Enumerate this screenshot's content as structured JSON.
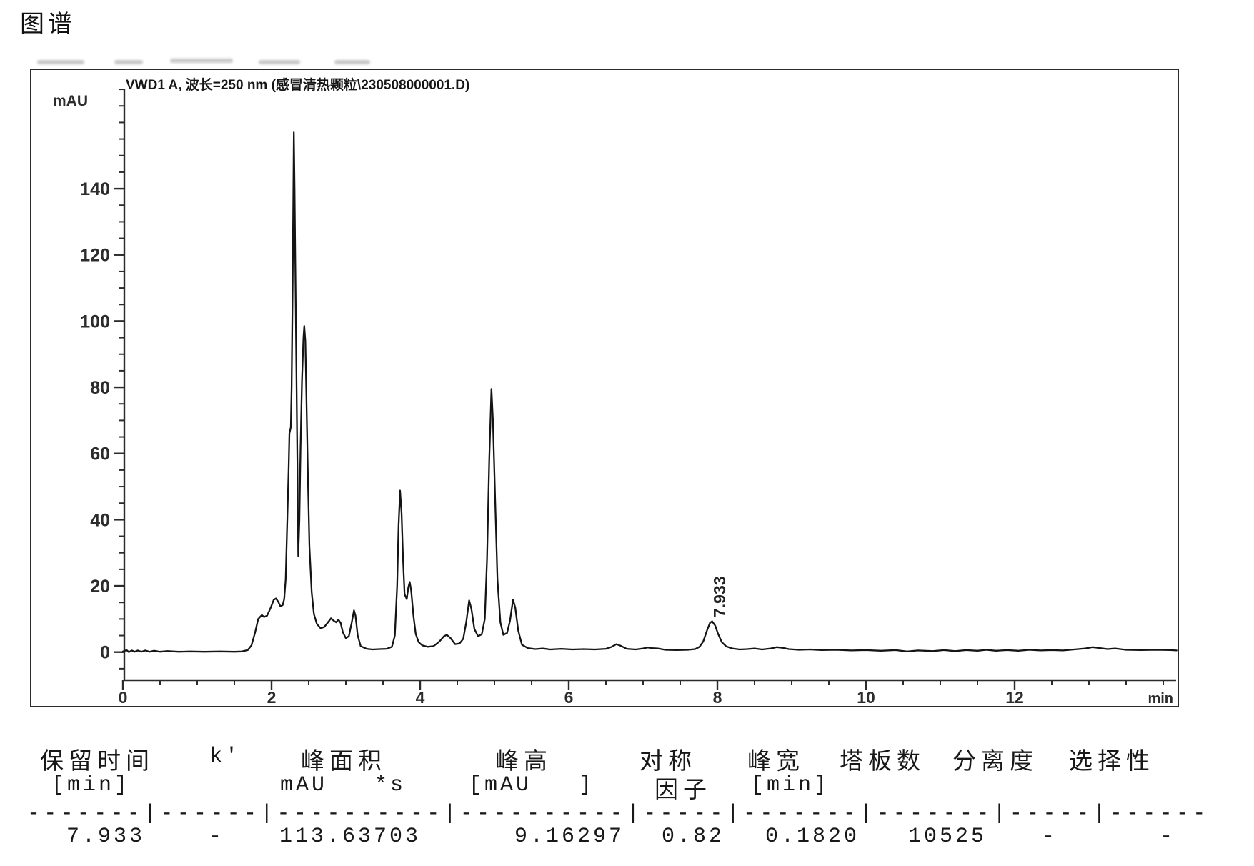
{
  "page": {
    "title": "图谱"
  },
  "chart": {
    "header": "VWD1 A, 波长=250 nm (感冒清热颗粒\\230508000001.D)",
    "y_unit": "mAU",
    "x_unit": "min"
  },
  "chart_data": {
    "type": "line",
    "title": "VWD1 A, 波长=250 nm (感冒清热颗粒\\230508000001.D)",
    "xlabel": "min",
    "ylabel": "mAU",
    "xlim": [
      0,
      14.2
    ],
    "ylim": [
      -8.5,
      170
    ],
    "x_ticks": [
      0,
      2,
      4,
      6,
      8,
      10,
      12
    ],
    "x_minor_step": 0.5,
    "y_ticks": [
      0,
      20,
      40,
      60,
      80,
      100,
      120,
      140
    ],
    "y_minor_step": 5,
    "grid": false,
    "legend": "none",
    "peaks": [
      {
        "label": "7.933",
        "rt_min": 7.933,
        "height_mau": 9.16297,
        "area": 113.63703
      }
    ],
    "series": [
      {
        "name": "VWD1 A",
        "points": [
          [
            0.0,
            0.2
          ],
          [
            0.05,
            0.6
          ],
          [
            0.08,
            0.0
          ],
          [
            0.12,
            0.5
          ],
          [
            0.16,
            0.1
          ],
          [
            0.2,
            0.5
          ],
          [
            0.25,
            0.1
          ],
          [
            0.3,
            0.5
          ],
          [
            0.36,
            0.1
          ],
          [
            0.42,
            0.4
          ],
          [
            0.5,
            0.1
          ],
          [
            0.6,
            0.3
          ],
          [
            0.75,
            0.1
          ],
          [
            0.9,
            0.2
          ],
          [
            1.1,
            0.1
          ],
          [
            1.3,
            0.2
          ],
          [
            1.5,
            0.1
          ],
          [
            1.6,
            0.2
          ],
          [
            1.68,
            0.6
          ],
          [
            1.73,
            2.0
          ],
          [
            1.78,
            6.0
          ],
          [
            1.82,
            10.0
          ],
          [
            1.87,
            11.2
          ],
          [
            1.9,
            10.6
          ],
          [
            1.94,
            11.0
          ],
          [
            1.99,
            13.5
          ],
          [
            2.03,
            15.8
          ],
          [
            2.06,
            16.2
          ],
          [
            2.09,
            15.2
          ],
          [
            2.12,
            13.8
          ],
          [
            2.15,
            14.2
          ],
          [
            2.17,
            16.0
          ],
          [
            2.19,
            22.0
          ],
          [
            2.21,
            38.0
          ],
          [
            2.23,
            55.0
          ],
          [
            2.24,
            66.0
          ],
          [
            2.26,
            68.0
          ],
          [
            2.27,
            80.0
          ],
          [
            2.285,
            112.0
          ],
          [
            2.3,
            157.0
          ],
          [
            2.31,
            140.0
          ],
          [
            2.33,
            95.0
          ],
          [
            2.35,
            52.0
          ],
          [
            2.36,
            29.0
          ],
          [
            2.375,
            40.0
          ],
          [
            2.39,
            62.0
          ],
          [
            2.41,
            82.0
          ],
          [
            2.43,
            95.0
          ],
          [
            2.44,
            98.5
          ],
          [
            2.455,
            94.0
          ],
          [
            2.47,
            76.0
          ],
          [
            2.49,
            52.0
          ],
          [
            2.51,
            32.0
          ],
          [
            2.54,
            18.0
          ],
          [
            2.57,
            11.5
          ],
          [
            2.61,
            8.5
          ],
          [
            2.66,
            7.2
          ],
          [
            2.71,
            7.6
          ],
          [
            2.76,
            9.0
          ],
          [
            2.8,
            10.2
          ],
          [
            2.84,
            9.4
          ],
          [
            2.87,
            9.0
          ],
          [
            2.9,
            9.8
          ],
          [
            2.93,
            8.8
          ],
          [
            2.96,
            6.0
          ],
          [
            3.0,
            4.2
          ],
          [
            3.04,
            4.8
          ],
          [
            3.08,
            9.0
          ],
          [
            3.11,
            12.6
          ],
          [
            3.13,
            11.0
          ],
          [
            3.16,
            5.0
          ],
          [
            3.2,
            1.8
          ],
          [
            3.28,
            1.0
          ],
          [
            3.36,
            0.8
          ],
          [
            3.45,
            0.9
          ],
          [
            3.55,
            1.0
          ],
          [
            3.62,
            1.6
          ],
          [
            3.66,
            5.0
          ],
          [
            3.69,
            20.0
          ],
          [
            3.71,
            38.0
          ],
          [
            3.73,
            48.8
          ],
          [
            3.75,
            42.0
          ],
          [
            3.77,
            28.0
          ],
          [
            3.79,
            17.5
          ],
          [
            3.82,
            16.0
          ],
          [
            3.84,
            19.5
          ],
          [
            3.86,
            21.2
          ],
          [
            3.88,
            18.5
          ],
          [
            3.91,
            11.0
          ],
          [
            3.94,
            5.5
          ],
          [
            3.98,
            3.0
          ],
          [
            4.03,
            2.0
          ],
          [
            4.1,
            1.6
          ],
          [
            4.18,
            1.8
          ],
          [
            4.26,
            3.2
          ],
          [
            4.32,
            4.8
          ],
          [
            4.36,
            5.2
          ],
          [
            4.41,
            4.2
          ],
          [
            4.47,
            2.4
          ],
          [
            4.53,
            2.6
          ],
          [
            4.58,
            4.0
          ],
          [
            4.62,
            9.0
          ],
          [
            4.66,
            15.6
          ],
          [
            4.69,
            13.0
          ],
          [
            4.73,
            7.0
          ],
          [
            4.78,
            4.8
          ],
          [
            4.83,
            5.4
          ],
          [
            4.87,
            10.0
          ],
          [
            4.9,
            28.0
          ],
          [
            4.93,
            58.0
          ],
          [
            4.96,
            79.5
          ],
          [
            4.98,
            70.0
          ],
          [
            5.01,
            46.0
          ],
          [
            5.04,
            22.0
          ],
          [
            5.08,
            9.0
          ],
          [
            5.12,
            5.2
          ],
          [
            5.17,
            5.8
          ],
          [
            5.21,
            9.5
          ],
          [
            5.25,
            15.8
          ],
          [
            5.28,
            13.5
          ],
          [
            5.32,
            6.5
          ],
          [
            5.37,
            2.2
          ],
          [
            5.45,
            1.2
          ],
          [
            5.55,
            0.9
          ],
          [
            5.65,
            1.1
          ],
          [
            5.75,
            0.8
          ],
          [
            5.9,
            1.0
          ],
          [
            6.05,
            0.8
          ],
          [
            6.2,
            0.9
          ],
          [
            6.35,
            0.8
          ],
          [
            6.5,
            1.0
          ],
          [
            6.58,
            1.6
          ],
          [
            6.64,
            2.4
          ],
          [
            6.7,
            1.9
          ],
          [
            6.78,
            1.0
          ],
          [
            6.9,
            0.8
          ],
          [
            7.0,
            1.1
          ],
          [
            7.06,
            1.4
          ],
          [
            7.12,
            1.2
          ],
          [
            7.2,
            1.1
          ],
          [
            7.3,
            0.7
          ],
          [
            7.45,
            0.6
          ],
          [
            7.6,
            0.7
          ],
          [
            7.7,
            0.9
          ],
          [
            7.76,
            1.6
          ],
          [
            7.81,
            3.2
          ],
          [
            7.86,
            6.5
          ],
          [
            7.9,
            8.8
          ],
          [
            7.93,
            9.3
          ],
          [
            7.97,
            8.0
          ],
          [
            8.01,
            5.5
          ],
          [
            8.06,
            3.0
          ],
          [
            8.12,
            1.7
          ],
          [
            8.2,
            1.1
          ],
          [
            8.3,
            0.8
          ],
          [
            8.4,
            0.9
          ],
          [
            8.5,
            1.1
          ],
          [
            8.6,
            0.8
          ],
          [
            8.72,
            1.1
          ],
          [
            8.8,
            1.5
          ],
          [
            8.88,
            1.3
          ],
          [
            8.96,
            0.9
          ],
          [
            9.1,
            0.7
          ],
          [
            9.25,
            0.8
          ],
          [
            9.4,
            0.6
          ],
          [
            9.6,
            0.7
          ],
          [
            9.8,
            0.5
          ],
          [
            10.0,
            0.6
          ],
          [
            10.2,
            0.4
          ],
          [
            10.4,
            0.6
          ],
          [
            10.55,
            0.2
          ],
          [
            10.7,
            0.5
          ],
          [
            10.9,
            0.3
          ],
          [
            11.05,
            0.6
          ],
          [
            11.2,
            0.3
          ],
          [
            11.35,
            0.6
          ],
          [
            11.5,
            0.4
          ],
          [
            11.62,
            0.7
          ],
          [
            11.75,
            0.4
          ],
          [
            11.9,
            0.6
          ],
          [
            12.05,
            0.4
          ],
          [
            12.2,
            0.7
          ],
          [
            12.35,
            0.5
          ],
          [
            12.5,
            0.6
          ],
          [
            12.65,
            0.5
          ],
          [
            12.8,
            0.8
          ],
          [
            12.95,
            1.1
          ],
          [
            13.05,
            1.5
          ],
          [
            13.15,
            1.2
          ],
          [
            13.25,
            0.9
          ],
          [
            13.35,
            1.1
          ],
          [
            13.5,
            0.7
          ],
          [
            13.7,
            0.6
          ],
          [
            13.9,
            0.7
          ],
          [
            14.1,
            0.6
          ],
          [
            14.18,
            0.5
          ]
        ]
      }
    ]
  },
  "table": {
    "headers": {
      "h1": "保留时间",
      "h2": "k'",
      "h3": "峰面积",
      "h4": "峰高",
      "h5": "对称",
      "h6": "峰宽",
      "h7": "塔板数",
      "h8": "分离度",
      "h9": "选择性"
    },
    "subheaders": {
      "s1": "[min]",
      "s3": "mAU   *s",
      "s4": "[mAU   ]",
      "s5": "因子",
      "s6": "[min]"
    },
    "separator": "-------|------|----------|----------|-----|-------|-------|-----|------",
    "row": {
      "retention_time": "7.933",
      "k": "-",
      "area": "113.63703",
      "height": "9.16297",
      "symmetry_factor": "0.82",
      "peak_width": "0.1820",
      "plates": "10525",
      "resolution": "-",
      "selectivity": "-"
    }
  }
}
